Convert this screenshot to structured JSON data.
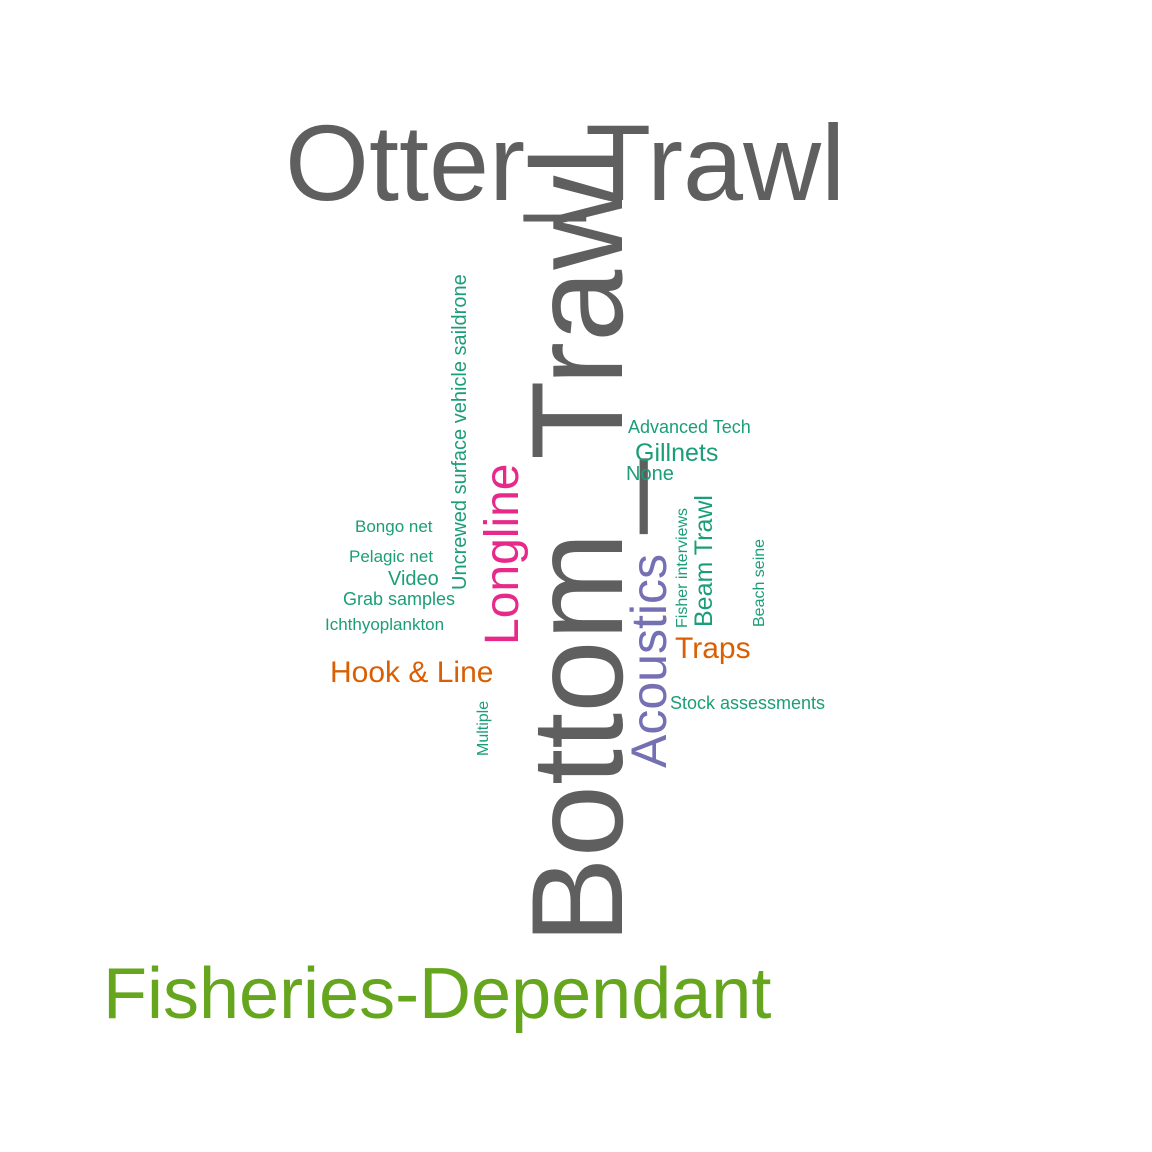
{
  "chart_data": {
    "type": "wordcloud",
    "colors": {
      "gray": "#5f5f5f",
      "green": "#66a61e",
      "teal": "#1b9e77",
      "pink": "#e7298a",
      "purple": "#7570b3",
      "orange": "#d95f02"
    },
    "words": [
      {
        "text": "Otter_Trawl",
        "color": "gray",
        "orientation": "horizontal",
        "weight": 10
      },
      {
        "text": "Bottom_Trawl",
        "color": "gray",
        "orientation": "vertical",
        "weight": 10
      },
      {
        "text": "Fisheries-Dependant",
        "color": "green",
        "orientation": "horizontal",
        "weight": 7
      },
      {
        "text": "Longline",
        "color": "pink",
        "orientation": "vertical",
        "weight": 5
      },
      {
        "text": "Acoustics",
        "color": "purple",
        "orientation": "vertical",
        "weight": 5
      },
      {
        "text": "Uncrewed surface vehicle saildrone",
        "color": "teal",
        "orientation": "vertical",
        "weight": 2
      },
      {
        "text": "Hook & Line",
        "color": "orange",
        "orientation": "horizontal",
        "weight": 3
      },
      {
        "text": "Traps",
        "color": "orange",
        "orientation": "horizontal",
        "weight": 3
      },
      {
        "text": "Beam Trawl",
        "color": "teal",
        "orientation": "vertical",
        "weight": 3
      },
      {
        "text": "Gillnets",
        "color": "teal",
        "orientation": "horizontal",
        "weight": 3
      },
      {
        "text": "None",
        "color": "teal",
        "orientation": "horizontal",
        "weight": 2
      },
      {
        "text": "Advanced Tech",
        "color": "teal",
        "orientation": "horizontal",
        "weight": 2
      },
      {
        "text": "Fisher interviews",
        "color": "teal",
        "orientation": "vertical",
        "weight": 1
      },
      {
        "text": "Beach seine",
        "color": "teal",
        "orientation": "vertical",
        "weight": 1
      },
      {
        "text": "Stock assessments",
        "color": "teal",
        "orientation": "horizontal",
        "weight": 1
      },
      {
        "text": "Bongo net",
        "color": "teal",
        "orientation": "horizontal",
        "weight": 1
      },
      {
        "text": "Pelagic net",
        "color": "teal",
        "orientation": "horizontal",
        "weight": 1
      },
      {
        "text": "Video",
        "color": "teal",
        "orientation": "horizontal",
        "weight": 2
      },
      {
        "text": "Grab samples",
        "color": "teal",
        "orientation": "horizontal",
        "weight": 1
      },
      {
        "text": "Ichthyoplankton",
        "color": "teal",
        "orientation": "horizontal",
        "weight": 1
      },
      {
        "text": "Multiple",
        "color": "teal",
        "orientation": "vertical",
        "weight": 1
      }
    ]
  }
}
